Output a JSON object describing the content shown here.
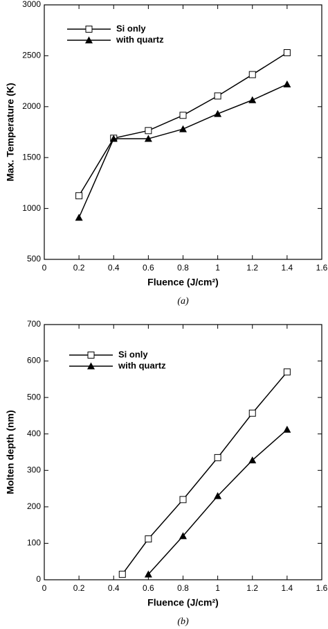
{
  "chart_data": [
    {
      "type": "line",
      "xlabel": "Fluence (J/cm²)",
      "ylabel": "Max. Temperature (K)",
      "caption": "(a)",
      "xlim": [
        0,
        1.6
      ],
      "xticks": [
        0,
        0.2,
        0.4,
        0.6,
        0.8,
        1,
        1.2,
        1.4,
        1.6
      ],
      "ylim": [
        500,
        3000
      ],
      "yticks": [
        500,
        1000,
        1500,
        2000,
        2500,
        3000
      ],
      "legend": "upper left",
      "series": [
        {
          "name": "Si only",
          "color": "#000000",
          "marker": "square",
          "x": [
            0.2,
            0.4,
            0.6,
            0.8,
            1.0,
            1.2,
            1.4
          ],
          "values": [
            1125,
            1690,
            1765,
            1915,
            2105,
            2315,
            2530
          ]
        },
        {
          "name": "with quartz",
          "color": "#000000",
          "marker": "triangle",
          "x": [
            0.2,
            0.4,
            0.6,
            0.8,
            1.0,
            1.2,
            1.4
          ],
          "values": [
            910,
            1685,
            1685,
            1780,
            1930,
            2065,
            2220
          ]
        }
      ]
    },
    {
      "type": "line",
      "xlabel": "Fluence (J/cm²)",
      "ylabel": "Molten depth (nm)",
      "caption": "(b)",
      "xlim": [
        0,
        1.6
      ],
      "xticks": [
        0,
        0.2,
        0.4,
        0.6,
        0.8,
        1,
        1.2,
        1.4,
        1.6
      ],
      "ylim": [
        0,
        700
      ],
      "yticks": [
        0,
        100,
        200,
        300,
        400,
        500,
        600,
        700
      ],
      "legend": "upper left",
      "series": [
        {
          "name": "Si only",
          "color": "#000000",
          "marker": "square",
          "x": [
            0.45,
            0.6,
            0.8,
            1.0,
            1.2,
            1.4
          ],
          "values": [
            15,
            112,
            220,
            335,
            457,
            570
          ]
        },
        {
          "name": "with quartz",
          "color": "#000000",
          "marker": "triangle",
          "x": [
            0.6,
            0.8,
            1.0,
            1.2,
            1.4
          ],
          "values": [
            15,
            120,
            230,
            328,
            412
          ]
        }
      ]
    }
  ]
}
